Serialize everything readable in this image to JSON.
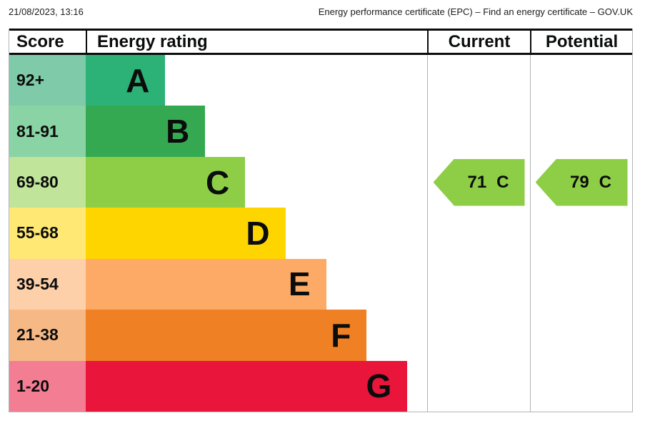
{
  "print_header": {
    "timestamp": "21/08/2023, 13:16",
    "title": "Energy performance certificate (EPC) – Find an energy certificate – GOV.UK"
  },
  "table": {
    "headers": {
      "score": "Score",
      "rating": "Energy rating",
      "current": "Current",
      "potential": "Potential"
    }
  },
  "chart_data": {
    "type": "bar",
    "title": "Energy rating",
    "description": "EPC energy efficiency rating bands with current and potential scores",
    "bands": [
      {
        "score": "92+",
        "letter": "A",
        "color": "#2cb176",
        "score_tint": "#7fcaa8",
        "bar_width_pct": 23.3
      },
      {
        "score": "81-91",
        "letter": "B",
        "color": "#35a952",
        "score_tint": "#8ad3a4",
        "bar_width_pct": 35.0
      },
      {
        "score": "69-80",
        "letter": "C",
        "color": "#8dce46",
        "score_tint": "#c0e499",
        "bar_width_pct": 46.7
      },
      {
        "score": "55-68",
        "letter": "D",
        "color": "#ffd500",
        "score_tint": "#ffe873",
        "bar_width_pct": 58.5
      },
      {
        "score": "39-54",
        "letter": "E",
        "color": "#fcaa65",
        "score_tint": "#fdd0aa",
        "bar_width_pct": 70.4
      },
      {
        "score": "21-38",
        "letter": "F",
        "color": "#ef8023",
        "score_tint": "#f6b986",
        "bar_width_pct": 82.3
      },
      {
        "score": "1-20",
        "letter": "G",
        "color": "#e9153b",
        "score_tint": "#f37e93",
        "bar_width_pct": 94.2
      }
    ],
    "current": {
      "value": "71",
      "band": "C",
      "color": "#8dce46",
      "band_row_index": 2
    },
    "potential": {
      "value": "79",
      "band": "C",
      "color": "#8dce46",
      "band_row_index": 2
    },
    "grid": false,
    "legend": false
  }
}
